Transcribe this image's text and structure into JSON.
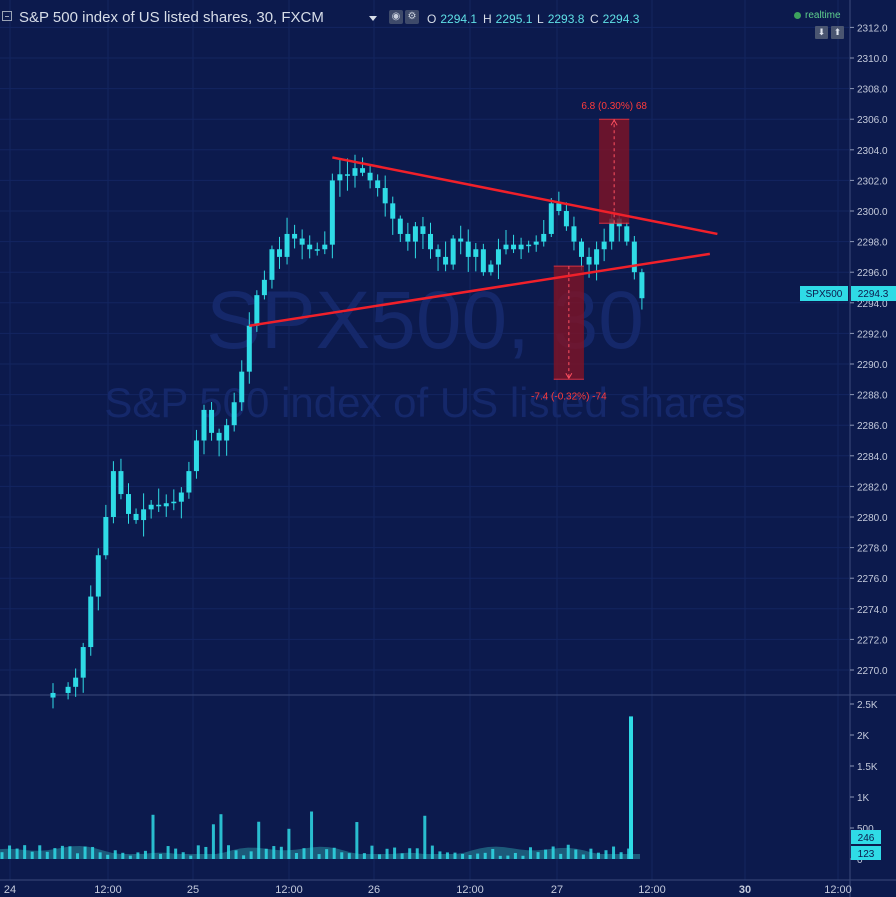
{
  "header": {
    "title": "S&P 500 index of US listed shares, 30, FXCM",
    "o_label": "O",
    "o_value": "2294.1",
    "h_label": "H",
    "h_value": "2295.1",
    "l_label": "L",
    "l_value": "2293.8",
    "c_label": "C",
    "c_value": "2294.3",
    "realtime": "realtime"
  },
  "watermark": {
    "symbol": "SPX500, 30",
    "description": "S&P 500 index of US listed shares"
  },
  "price_tag": {
    "symbol": "SPX500",
    "value": "2294.3"
  },
  "colors": {
    "background": "#0c1a4d",
    "candle": "#2fdbe6",
    "trendline": "#f0202a",
    "measure_fill": "#7a1428",
    "measure_text": "#ff3b3b"
  },
  "chart_data": [
    {
      "type": "candlestick",
      "title": "S&P 500 index of US listed shares, 30, FXCM",
      "x_ticks": [
        "24",
        "12:00",
        "25",
        "12:00",
        "26",
        "12:00",
        "27",
        "12:00",
        "30",
        "12:00"
      ],
      "y_ticks": [
        "2270.0",
        "2272.0",
        "2274.0",
        "2276.0",
        "2278.0",
        "2280.0",
        "2282.0",
        "2284.0",
        "2286.0",
        "2288.0",
        "2290.0",
        "2292.0",
        "2294.0",
        "2296.0",
        "2298.0",
        "2300.0",
        "2302.0",
        "2304.0",
        "2306.0",
        "2308.0",
        "2310.0",
        "2312.0"
      ],
      "ylim": [
        2268.2,
        2314.0
      ],
      "close_path": [
        [
          0,
          2268.5
        ],
        [
          2,
          2268.9
        ],
        [
          3,
          2269.5
        ],
        [
          4,
          2271.5
        ],
        [
          5,
          2274.8
        ],
        [
          6,
          2277.5
        ],
        [
          7,
          2280.0
        ],
        [
          8,
          2283.0
        ],
        [
          9,
          2281.5
        ],
        [
          10,
          2280.2
        ],
        [
          11,
          2279.8
        ],
        [
          12,
          2280.5
        ],
        [
          13,
          2280.8
        ],
        [
          14,
          2280.7
        ],
        [
          15,
          2280.9
        ],
        [
          16,
          2281.0
        ],
        [
          17,
          2281.6
        ],
        [
          18,
          2283.0
        ],
        [
          19,
          2285.0
        ],
        [
          20,
          2287.0
        ],
        [
          21,
          2285.5
        ],
        [
          22,
          2285.0
        ],
        [
          23,
          2286.0
        ],
        [
          24,
          2287.5
        ],
        [
          25,
          2289.5
        ],
        [
          26,
          2292.5
        ],
        [
          27,
          2294.5
        ],
        [
          28,
          2295.5
        ],
        [
          29,
          2297.5
        ],
        [
          30,
          2297.0
        ],
        [
          31,
          2298.5
        ],
        [
          32,
          2298.2
        ],
        [
          33,
          2297.8
        ],
        [
          34,
          2297.5
        ],
        [
          35,
          2297.5
        ],
        [
          36,
          2297.8
        ],
        [
          37,
          2302.0
        ],
        [
          38,
          2302.4
        ],
        [
          39,
          2302.3
        ],
        [
          40,
          2302.8
        ],
        [
          41,
          2302.5
        ],
        [
          42,
          2302.0
        ],
        [
          43,
          2301.5
        ],
        [
          44,
          2300.5
        ],
        [
          45,
          2299.5
        ],
        [
          46,
          2298.5
        ],
        [
          47,
          2298.0
        ],
        [
          48,
          2299.0
        ],
        [
          49,
          2298.5
        ],
        [
          50,
          2297.5
        ],
        [
          51,
          2297.0
        ],
        [
          52,
          2296.5
        ],
        [
          53,
          2298.2
        ],
        [
          54,
          2298.0
        ],
        [
          55,
          2297.0
        ],
        [
          56,
          2297.5
        ],
        [
          57,
          2296.0
        ],
        [
          58,
          2296.5
        ],
        [
          59,
          2297.5
        ],
        [
          60,
          2297.8
        ],
        [
          61,
          2297.5
        ],
        [
          62,
          2297.8
        ],
        [
          63,
          2297.8
        ],
        [
          64,
          2298.0
        ],
        [
          65,
          2298.5
        ],
        [
          66,
          2300.5
        ],
        [
          67,
          2300.0
        ],
        [
          68,
          2299.0
        ],
        [
          69,
          2298.0
        ],
        [
          70,
          2297.0
        ],
        [
          71,
          2296.5
        ],
        [
          72,
          2297.5
        ],
        [
          73,
          2298.0
        ],
        [
          74,
          2299.5
        ],
        [
          75,
          2299.0
        ],
        [
          76,
          2298.0
        ],
        [
          77,
          2296.0
        ],
        [
          78,
          2294.3
        ]
      ],
      "volume_ticks": [
        "2.5K",
        "2K",
        "1.5K",
        "1K",
        "500",
        "0"
      ],
      "volume_labels": [
        "246",
        "123"
      ],
      "volume_spike": 2300,
      "trendlines": [
        {
          "from": [
            37,
            2303.5
          ],
          "to": [
            88,
            2298.5
          ]
        },
        {
          "from": [
            26,
            2292.5
          ],
          "to": [
            87,
            2297.2
          ]
        }
      ],
      "measurements": [
        {
          "label": "6.8 (0.30%) 68",
          "x_range": [
            71,
            75
          ],
          "y_from": 2299.2,
          "y_to": 2306.0,
          "direction": "up"
        },
        {
          "label": "-7.4 (-0.32%) -74",
          "x_range": [
            65,
            69
          ],
          "y_from": 2296.4,
          "y_to": 2289.0,
          "direction": "down"
        }
      ]
    }
  ]
}
